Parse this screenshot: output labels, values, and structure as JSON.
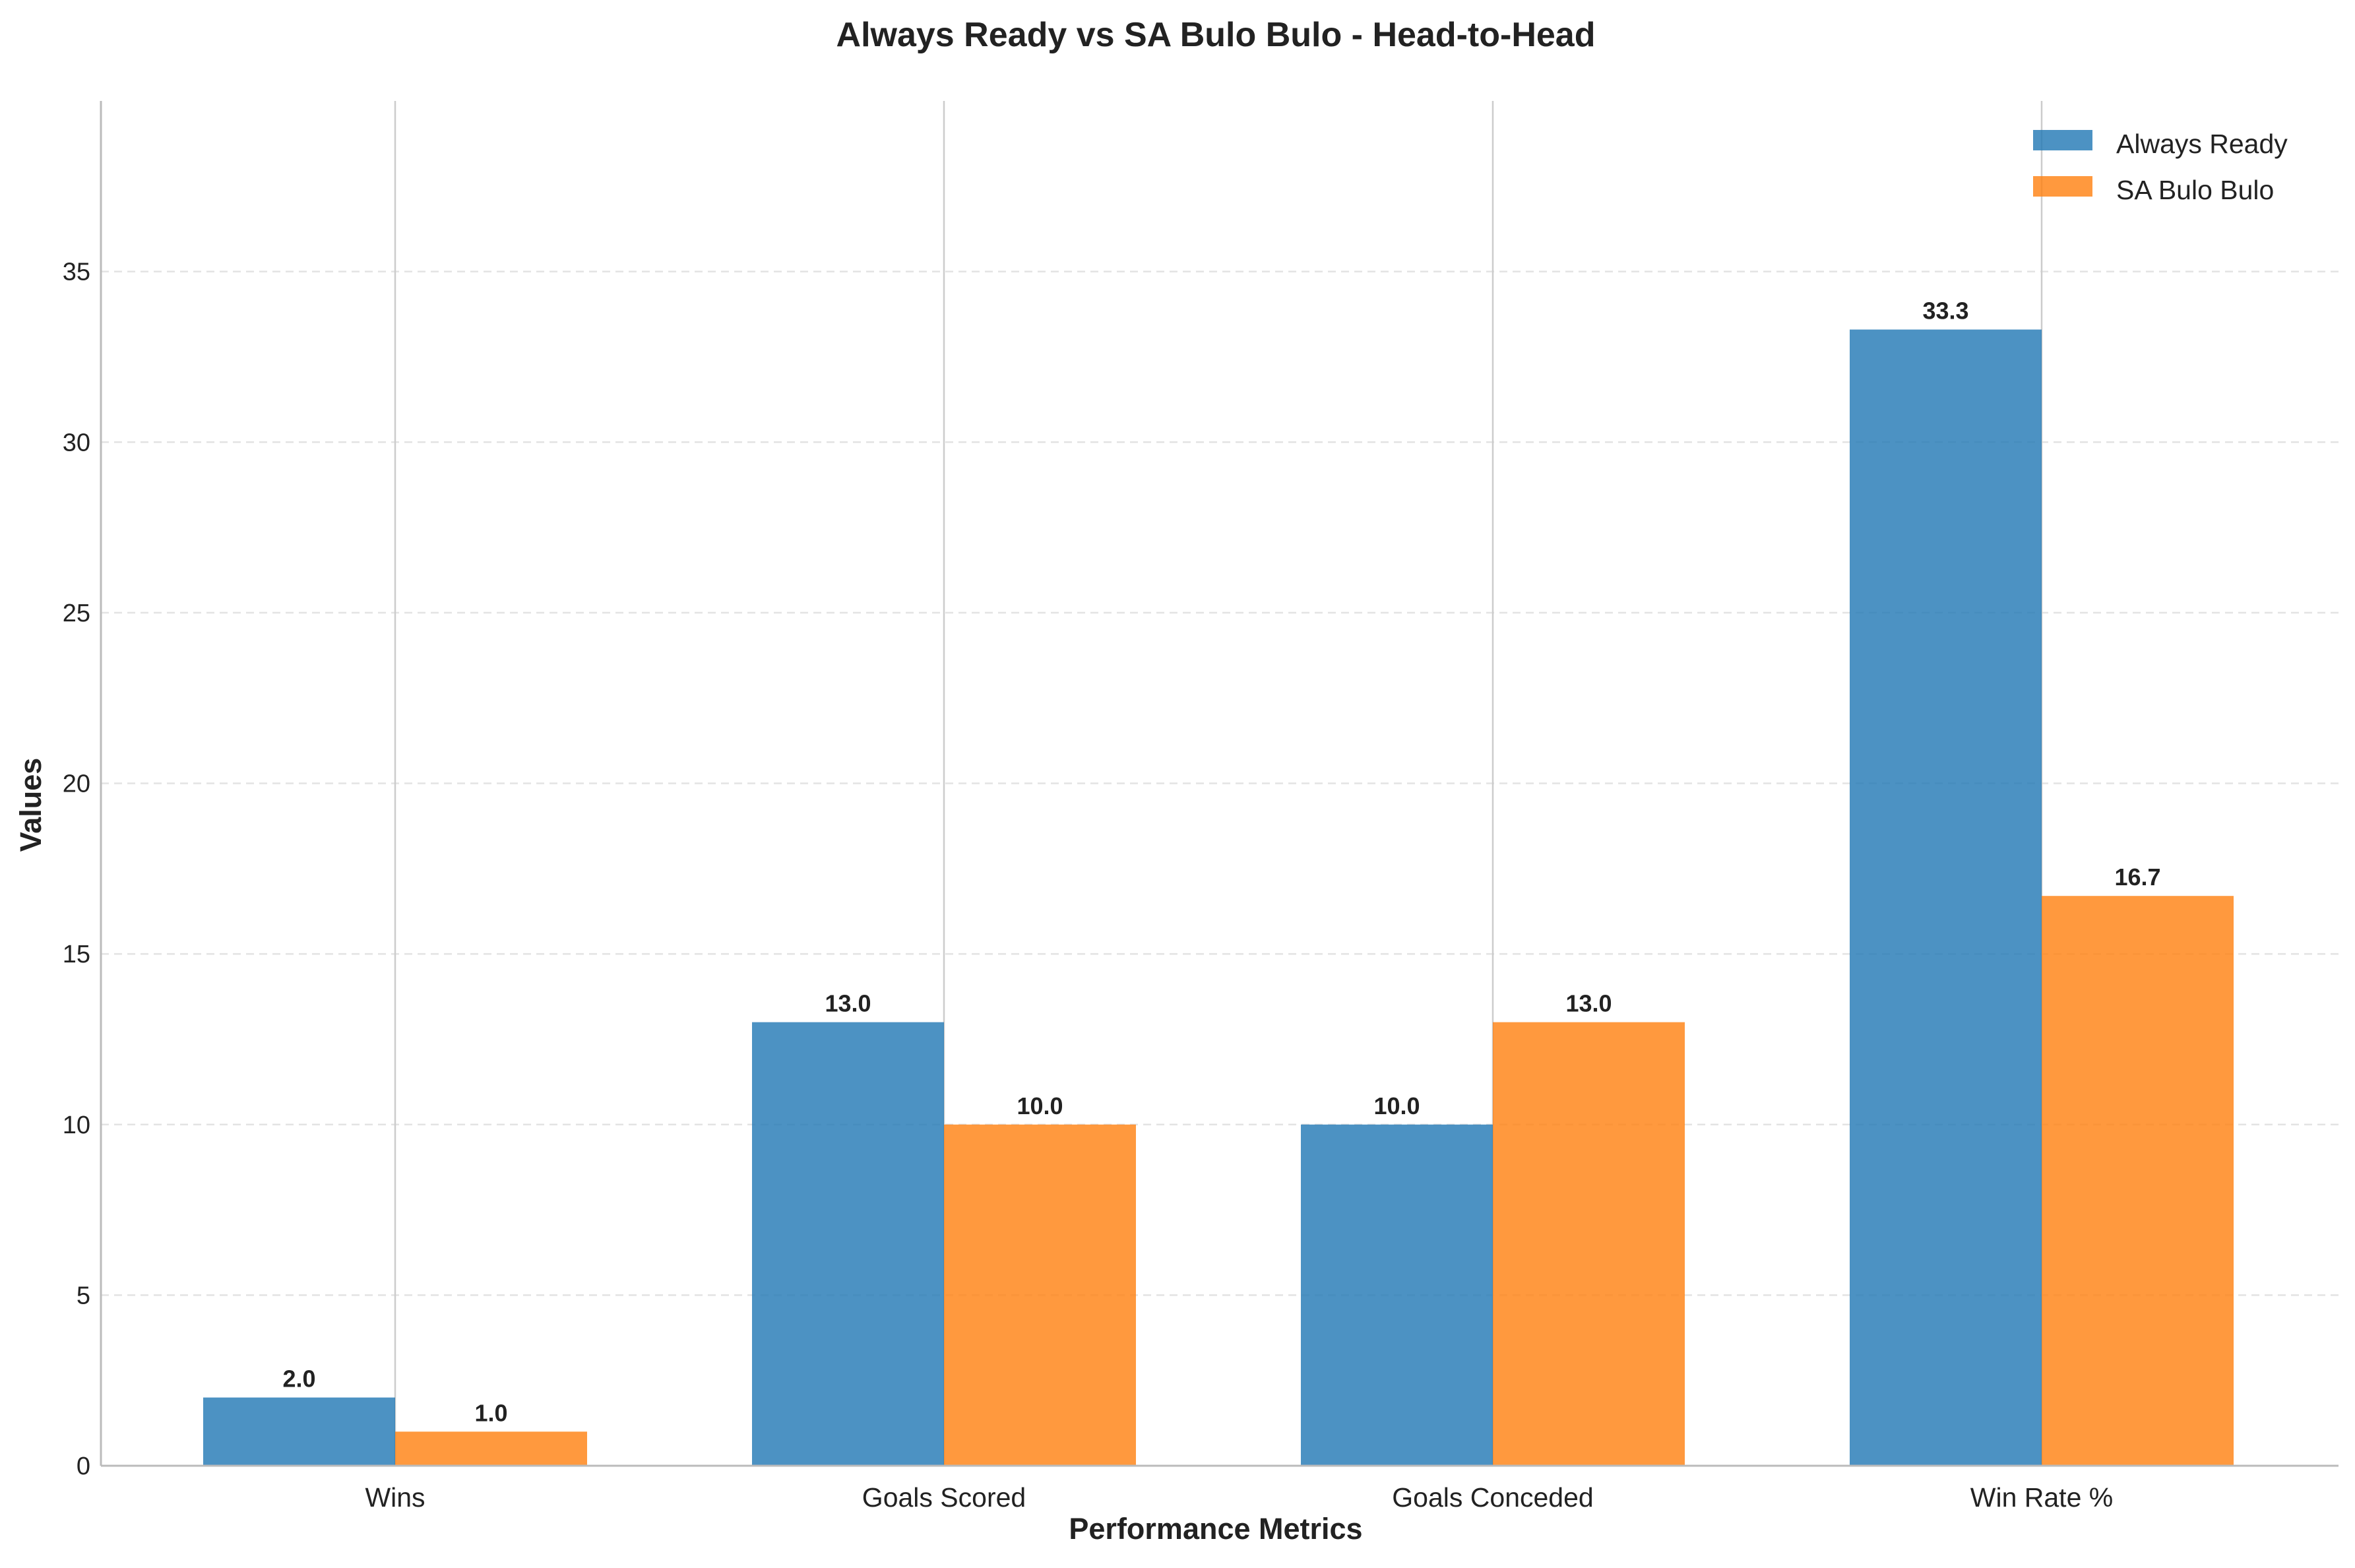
{
  "chart_data": {
    "type": "bar",
    "title": "Always Ready vs SA Bulo Bulo - Head-to-Head",
    "xlabel": "Performance Metrics",
    "ylabel": "Values",
    "categories": [
      "Wins",
      "Goals Scored",
      "Goals Conceded",
      "Win Rate %"
    ],
    "series": [
      {
        "name": "Always Ready",
        "values": [
          2.0,
          13.0,
          10.0,
          33.3
        ],
        "labels": [
          "2.0",
          "13.0",
          "10.0",
          "33.3"
        ],
        "color": "#1f77b4"
      },
      {
        "name": "SA Bulo Bulo",
        "values": [
          1.0,
          10.0,
          13.0,
          16.7
        ],
        "labels": [
          "1.0",
          "10.0",
          "13.0",
          "16.7"
        ],
        "color": "#ff7f0e"
      }
    ],
    "ylim": [
      0,
      40
    ],
    "yticks": [
      0,
      5,
      10,
      15,
      20,
      25,
      30,
      35
    ],
    "ytick_labels": [
      "0",
      "5",
      "10",
      "15",
      "20",
      "25",
      "30",
      "35"
    ],
    "grid": "y-dashed",
    "legend_position": "top-right"
  }
}
